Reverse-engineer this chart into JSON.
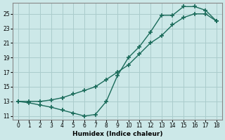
{
  "bg_color": "#cce8e8",
  "grid_color": "#aacccc",
  "line_color": "#1a6b5a",
  "xlabel": "Humidex (Indice chaleur)",
  "upper_x": [
    0,
    1,
    2,
    3,
    4,
    5,
    6,
    7,
    8,
    9,
    10,
    11,
    12,
    13,
    14,
    15,
    16,
    17,
    18
  ],
  "upper_y": [
    13,
    13,
    13,
    13.2,
    13.5,
    14,
    14.5,
    15,
    16,
    17,
    18,
    19.5,
    21,
    22,
    23.5,
    24.5,
    25,
    25,
    24
  ],
  "lower_x": [
    0,
    1,
    2,
    3,
    4,
    5,
    6,
    7,
    8,
    9,
    10,
    11,
    12,
    13,
    14,
    15,
    16,
    17,
    18
  ],
  "lower_y": [
    13,
    12.8,
    12.5,
    12.2,
    11.8,
    11.4,
    11.0,
    11.2,
    13.0,
    16.5,
    19,
    20.5,
    22.5,
    24.8,
    24.8,
    26,
    26,
    25.5,
    24
  ],
  "ylim": [
    10.5,
    26.5
  ],
  "xlim": [
    -0.5,
    18.5
  ],
  "yticks": [
    11,
    13,
    15,
    17,
    19,
    21,
    23,
    25
  ],
  "xticks": [
    0,
    1,
    2,
    3,
    4,
    5,
    6,
    7,
    8,
    9,
    10,
    11,
    12,
    13,
    14,
    15,
    16,
    17,
    18
  ]
}
